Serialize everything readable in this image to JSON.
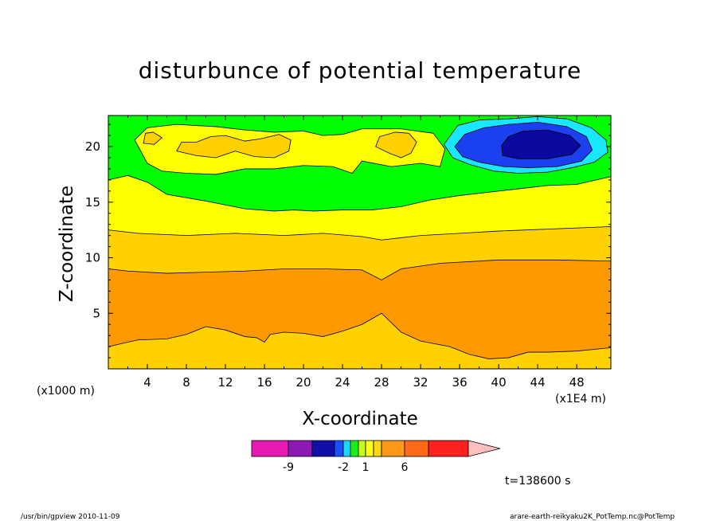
{
  "chart_data": {
    "type": "heatmap",
    "title": "disturbunce of potential temperature",
    "xlabel": "X-coordinate",
    "ylabel": "Z-coordinate",
    "x_unit_left": "(x1000 m)",
    "x_unit_right": "(x1E4 m)",
    "xlim": [
      0,
      51.5
    ],
    "ylim": [
      0,
      22.8
    ],
    "x_ticks": [
      4,
      8,
      12,
      16,
      20,
      24,
      28,
      32,
      36,
      40,
      44,
      48
    ],
    "y_ticks": [
      5,
      10,
      15,
      20
    ],
    "time_label": "t=138600 s",
    "colorbar": {
      "colors": [
        "#e619b3",
        "#8c19b3",
        "#1010a8",
        "#1a50ff",
        "#19d7ff",
        "#19f019",
        "#c8ff19",
        "#ffff19",
        "#ffd719",
        "#ff9919",
        "#ff6a19",
        "#ff2020",
        "#ff7a7a",
        "#ffbfbf"
      ],
      "tick_labels": [
        "-9",
        "-2",
        "1",
        "6"
      ]
    },
    "bands": [
      {
        "color": "#ffd100",
        "lower": [
          [
            0,
            0
          ],
          [
            51.5,
            0
          ]
        ]
      },
      {
        "color": "#ff9900",
        "lower": [
          [
            0,
            2
          ],
          [
            3,
            2.6
          ],
          [
            6,
            2.7
          ],
          [
            8,
            3.1
          ],
          [
            10,
            3.8
          ],
          [
            12,
            3.5
          ],
          [
            14,
            2.9
          ],
          [
            15.2,
            2.8
          ],
          [
            16,
            2.4
          ],
          [
            16.6,
            3.1
          ],
          [
            18,
            3.3
          ],
          [
            20,
            3.2
          ],
          [
            22,
            2.9
          ],
          [
            24,
            3.4
          ],
          [
            26,
            4
          ],
          [
            28,
            5
          ],
          [
            30,
            3.3
          ],
          [
            32,
            2.5
          ],
          [
            35,
            2
          ],
          [
            37,
            1.3
          ],
          [
            39,
            0.9
          ],
          [
            41,
            1
          ],
          [
            43,
            1.5
          ],
          [
            45,
            1.5
          ],
          [
            48,
            1.6
          ],
          [
            51.5,
            1.9
          ]
        ]
      },
      {
        "color": "#ffd100",
        "lower": [
          [
            0,
            9
          ],
          [
            2,
            8.8
          ],
          [
            6,
            8.6
          ],
          [
            10,
            8.7
          ],
          [
            14,
            8.8
          ],
          [
            18,
            9
          ],
          [
            22,
            9
          ],
          [
            26,
            8.9
          ],
          [
            28,
            8
          ],
          [
            30,
            9
          ],
          [
            34,
            9.5
          ],
          [
            40,
            9.8
          ],
          [
            46,
            9.8
          ],
          [
            51.5,
            9.7
          ]
        ]
      },
      {
        "color": "#ffff00",
        "lower": [
          [
            0,
            12.5
          ],
          [
            3,
            12.2
          ],
          [
            8,
            12
          ],
          [
            13,
            12.2
          ],
          [
            18,
            12
          ],
          [
            22,
            12.2
          ],
          [
            26,
            11.9
          ],
          [
            28,
            11.6
          ],
          [
            32,
            12
          ],
          [
            36,
            12.2
          ],
          [
            40,
            12.4
          ],
          [
            51.5,
            12.8
          ]
        ]
      },
      {
        "color": "#00ff00",
        "lower": [
          [
            0,
            17
          ],
          [
            2,
            17.4
          ],
          [
            4,
            16.8
          ],
          [
            6,
            15.7
          ],
          [
            10,
            15.1
          ],
          [
            14,
            14.4
          ],
          [
            17,
            14.2
          ],
          [
            19,
            14.3
          ],
          [
            21,
            14.2
          ],
          [
            24,
            14.3
          ],
          [
            27,
            14.3
          ],
          [
            30,
            14.6
          ],
          [
            33,
            15.2
          ],
          [
            36,
            15.6
          ],
          [
            39,
            15.9
          ],
          [
            42,
            16.2
          ],
          [
            45,
            16.5
          ],
          [
            48,
            16.6
          ],
          [
            51.5,
            17.3
          ]
        ]
      }
    ],
    "blobs": [
      {
        "color": "#ffff00",
        "pts": [
          [
            4,
            18.5
          ],
          [
            5.5,
            17.8
          ],
          [
            8,
            17.6
          ],
          [
            11,
            17.5
          ],
          [
            14,
            18
          ],
          [
            17,
            18
          ],
          [
            20,
            18.3
          ],
          [
            23,
            18.2
          ],
          [
            25,
            17.6
          ],
          [
            26,
            18.7
          ],
          [
            29,
            18.2
          ],
          [
            32,
            18.5
          ],
          [
            34,
            18.2
          ],
          [
            34.5,
            19.8
          ],
          [
            33.3,
            21.2
          ],
          [
            30,
            21.6
          ],
          [
            26,
            21.6
          ],
          [
            24,
            21.1
          ],
          [
            22,
            21
          ],
          [
            20,
            21.4
          ],
          [
            17,
            21.3
          ],
          [
            14,
            21.5
          ],
          [
            11,
            21.8
          ],
          [
            7,
            22
          ],
          [
            4,
            21.7
          ],
          [
            2.7,
            20.6
          ]
        ]
      },
      {
        "color": "#ffd100",
        "pts": [
          [
            7,
            19.6
          ],
          [
            9,
            19.2
          ],
          [
            11,
            19
          ],
          [
            13,
            19.6
          ],
          [
            15,
            19.1
          ],
          [
            17,
            19
          ],
          [
            18.5,
            19.6
          ],
          [
            18.7,
            20.6
          ],
          [
            17.5,
            21.1
          ],
          [
            15.6,
            20.7
          ],
          [
            14,
            20.5
          ],
          [
            12,
            21
          ],
          [
            10.5,
            20.9
          ],
          [
            9,
            20.4
          ],
          [
            7.5,
            20.4
          ]
        ]
      },
      {
        "color": "#ffd100",
        "pts": [
          [
            28.8,
            19.4
          ],
          [
            30,
            19
          ],
          [
            31,
            19.4
          ],
          [
            31.6,
            20.4
          ],
          [
            30.8,
            21.2
          ],
          [
            29.4,
            21.3
          ],
          [
            27.8,
            20.9
          ],
          [
            27.4,
            20
          ]
        ]
      },
      {
        "color": "#ffd100",
        "pts": [
          [
            3.6,
            20.3
          ],
          [
            4.7,
            20.2
          ],
          [
            5.5,
            20.8
          ],
          [
            4.6,
            21.3
          ],
          [
            3.8,
            21.2
          ]
        ]
      },
      {
        "color": "#19e6ff",
        "pts": [
          [
            34.4,
            20.2
          ],
          [
            35.3,
            19
          ],
          [
            37,
            18.4
          ],
          [
            39.5,
            17.8
          ],
          [
            42,
            17.6
          ],
          [
            45,
            17.7
          ],
          [
            47.5,
            18.1
          ],
          [
            49.8,
            18.6
          ],
          [
            51.2,
            19.5
          ],
          [
            51,
            20.6
          ],
          [
            49.5,
            21.7
          ],
          [
            47,
            22.5
          ],
          [
            44,
            22.7
          ],
          [
            41,
            22.5
          ],
          [
            38,
            22.4
          ],
          [
            35.8,
            21.9
          ]
        ]
      },
      {
        "color": "#1a40f0",
        "pts": [
          [
            35.5,
            20
          ],
          [
            36.3,
            19.1
          ],
          [
            38,
            18.6
          ],
          [
            40.5,
            18.2
          ],
          [
            43,
            18.1
          ],
          [
            46,
            18.2
          ],
          [
            48.5,
            18.7
          ],
          [
            49.6,
            19.7
          ],
          [
            49,
            20.9
          ],
          [
            47,
            21.8
          ],
          [
            44,
            22.2
          ],
          [
            41,
            22
          ],
          [
            38.5,
            21.7
          ],
          [
            36.5,
            21.1
          ]
        ]
      },
      {
        "color": "#0a0aa0",
        "pts": [
          [
            40.4,
            19.2
          ],
          [
            42,
            18.9
          ],
          [
            45,
            18.9
          ],
          [
            47.5,
            19.3
          ],
          [
            48.4,
            20.1
          ],
          [
            47.3,
            21
          ],
          [
            45,
            21.5
          ],
          [
            42.5,
            21.4
          ],
          [
            41,
            20.9
          ],
          [
            40.3,
            20.1
          ]
        ]
      }
    ],
    "footer_left": "/usr/bin/gpview  2010-11-09",
    "footer_right": "arare-earth-reikyaku2K_PotTemp.nc@PotTemp"
  }
}
